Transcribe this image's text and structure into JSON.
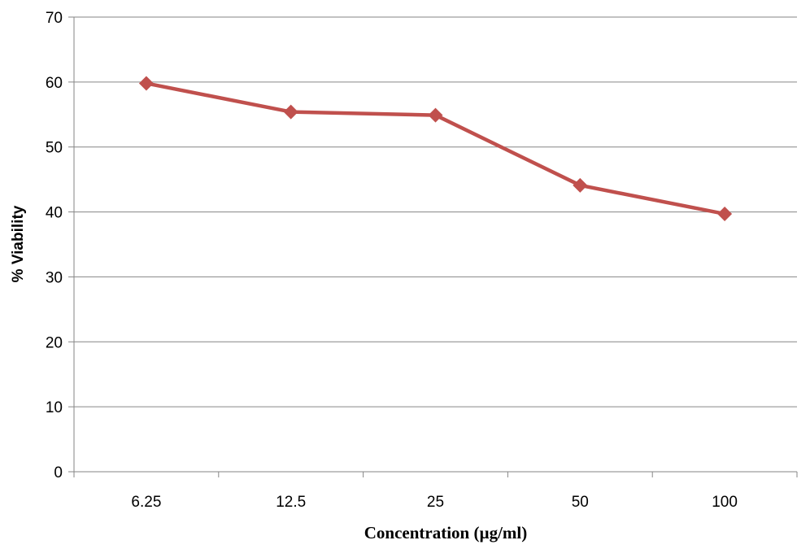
{
  "chart_data": {
    "type": "line",
    "categories": [
      "6.25",
      "12.5",
      "25",
      "50",
      "100"
    ],
    "series": [
      {
        "values": [
          59.8,
          55.4,
          54.9,
          44.1,
          39.7
        ],
        "color": "#c0504d",
        "marker": "diamond"
      }
    ],
    "xlabel": "Concentration (µg/ml)",
    "ylabel": "% Viability",
    "ylim": [
      0,
      70
    ],
    "yticks": [
      0,
      10,
      20,
      30,
      40,
      50,
      60,
      70
    ],
    "grid": true,
    "legend": "none",
    "colors": {
      "series": "#c0504d",
      "grid": "#868686",
      "axis": "#868686"
    }
  }
}
